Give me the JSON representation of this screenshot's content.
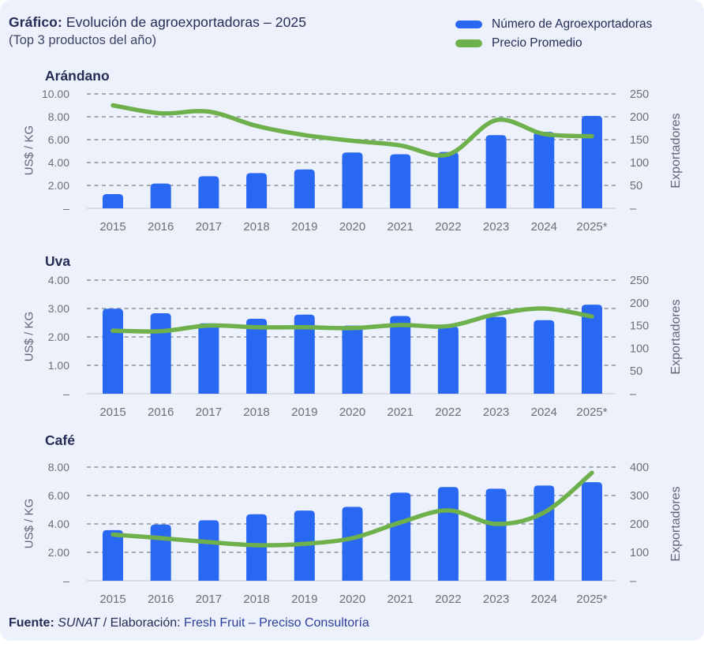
{
  "header": {
    "title_prefix": "Gráfico:",
    "title": "Evolución de agroexportadoras – 2025",
    "subtitle": "(Top 3 productos del año)",
    "legend": [
      {
        "label": "Número de Agroexportadoras",
        "color": "#2968F3",
        "marker": "pill"
      },
      {
        "label": "Precio Promedio",
        "color": "#6EB04B",
        "marker": "pill"
      }
    ]
  },
  "colors": {
    "bar": "#2968F3",
    "line": "#6EB04B",
    "background": "#edf1fb",
    "grid": "#8b919c",
    "baseline": "#d9dce5",
    "axis_text": "#6b7078",
    "title_text": "#252c55"
  },
  "chart_data": [
    {
      "type": "bar",
      "subtype": "bar+line combo",
      "title": "Arándano",
      "categories": [
        "2015",
        "2016",
        "2017",
        "2018",
        "2019",
        "2020",
        "2021",
        "2022",
        "2023",
        "2024",
        "2025*"
      ],
      "series": [
        {
          "name": "Número de Agroexportadoras",
          "type": "bar",
          "axis": "right",
          "values": [
            31,
            54,
            70,
            77,
            85,
            122,
            118,
            123,
            160,
            167,
            202
          ]
        },
        {
          "name": "Precio Promedio",
          "type": "line",
          "axis": "left",
          "values": [
            9.0,
            8.3,
            8.45,
            7.2,
            6.4,
            5.9,
            5.5,
            4.7,
            7.7,
            6.5,
            6.3
          ]
        }
      ],
      "ylabel_left": "US$ / KG",
      "ylabel_right": "Exportadores",
      "y_left_ticks": [
        "10.00",
        "8.00",
        "6.00",
        "4.00",
        "2.00",
        "–"
      ],
      "y_left_max": 10,
      "y_right_ticks": [
        "250",
        "200",
        "150",
        "100",
        "50",
        "–"
      ],
      "y_right_max": 250,
      "grid": "dashed horizontal at left ticks",
      "legend_position": "top-right of page"
    },
    {
      "type": "bar",
      "subtype": "bar+line combo",
      "title": "Uva",
      "categories": [
        "2015",
        "2016",
        "2017",
        "2018",
        "2019",
        "2020",
        "2021",
        "2022",
        "2023",
        "2024",
        "2025*"
      ],
      "series": [
        {
          "name": "Número de Agroexportadoras",
          "type": "bar",
          "axis": "right",
          "values": [
            187,
            177,
            155,
            165,
            174,
            150,
            171,
            148,
            169,
            162,
            196
          ]
        },
        {
          "name": "Precio Promedio",
          "type": "line",
          "axis": "left",
          "values": [
            2.22,
            2.2,
            2.4,
            2.34,
            2.34,
            2.31,
            2.42,
            2.38,
            2.8,
            3.0,
            2.72
          ]
        }
      ],
      "ylabel_left": "US$ / KG",
      "ylabel_right": "Exportadores",
      "y_left_ticks": [
        "4.00",
        "3.00",
        "2.00",
        "1.00",
        "–"
      ],
      "y_left_max": 4,
      "y_right_ticks": [
        "250",
        "200",
        "150",
        "100",
        "50",
        "–"
      ],
      "y_right_max": 250,
      "grid": "dashed horizontal at left ticks",
      "legend_position": "top-right of page"
    },
    {
      "type": "bar",
      "subtype": "bar+line combo",
      "title": "Café",
      "categories": [
        "2015",
        "2016",
        "2017",
        "2018",
        "2019",
        "2020",
        "2021",
        "2022",
        "2023",
        "2024",
        "2025*"
      ],
      "series": [
        {
          "name": "Número de Agroexportadoras",
          "type": "bar",
          "axis": "right",
          "values": [
            178,
            198,
            213,
            234,
            247,
            260,
            310,
            330,
            324,
            335,
            347
          ]
        },
        {
          "name": "Precio Promedio",
          "type": "line",
          "axis": "left",
          "values": [
            3.25,
            3.0,
            2.72,
            2.5,
            2.6,
            3.0,
            4.1,
            4.95,
            4.0,
            4.8,
            7.6
          ]
        }
      ],
      "ylabel_left": "US$ / KG",
      "ylabel_right": "Exportadores",
      "y_left_ticks": [
        "8.00",
        "6.00",
        "4.00",
        "2.00",
        "–"
      ],
      "y_left_max": 8,
      "y_right_ticks": [
        "400",
        "300",
        "200",
        "100",
        "–"
      ],
      "y_right_max": 400,
      "grid": "dashed horizontal at left ticks",
      "legend_position": "top-right of page"
    }
  ],
  "footer": {
    "fuente_label": "Fuente:",
    "fuente_value": "SUNAT",
    "separator": "/",
    "elaboracion_label": "Elaboración:",
    "elaboracion_value": "Fresh Fruit – Preciso Consultoría"
  }
}
